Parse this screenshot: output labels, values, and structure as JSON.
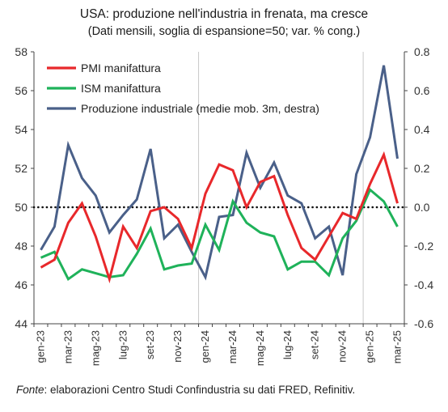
{
  "chart_data": {
    "type": "line",
    "title": "USA: produzione nell'industria in frenata, ma cresce",
    "subtitle": "(Dati mensili, soglia di espansione=50; var. % cong.)",
    "source_prefix": "Fonte",
    "source_text": ": elaborazioni Centro Studi Confindustria su dati FRED, Refinitiv.",
    "x_labels": [
      "gen-23",
      "mar-23",
      "mag-23",
      "lug-23",
      "set-23",
      "nov-23",
      "gen-24",
      "mar-24",
      "mag-24",
      "lug-24",
      "set-24",
      "nov-24",
      "gen-25",
      "mar-25"
    ],
    "months": [
      "gen-23",
      "feb-23",
      "mar-23",
      "apr-23",
      "mag-23",
      "giu-23",
      "lug-23",
      "ago-23",
      "set-23",
      "ott-23",
      "nov-23",
      "dic-23",
      "gen-24",
      "feb-24",
      "mar-24",
      "apr-24",
      "mag-24",
      "giu-24",
      "lug-24",
      "ago-24",
      "set-24",
      "ott-24",
      "nov-24",
      "dic-24",
      "gen-25",
      "feb-25",
      "mar-25"
    ],
    "y_left": {
      "min": 44,
      "max": 58,
      "ticks": [
        "44",
        "46",
        "48",
        "50",
        "52",
        "54",
        "56",
        "58"
      ]
    },
    "y_right": {
      "min": -0.6,
      "max": 0.8,
      "ticks": [
        "-0.6",
        "-0.4",
        "-0.2",
        "0.0",
        "0.2",
        "0.4",
        "0.6",
        "0.8"
      ]
    },
    "threshold": 50,
    "series": [
      {
        "name": "PMI manifattura",
        "axis": "left",
        "color": "#e8282b",
        "values": [
          46.9,
          47.3,
          49.2,
          50.2,
          48.5,
          46.3,
          49.0,
          47.9,
          49.8,
          50.0,
          49.4,
          47.9,
          50.7,
          52.2,
          51.9,
          50.0,
          51.3,
          51.6,
          49.6,
          47.9,
          47.3,
          48.5,
          49.7,
          49.4,
          51.2,
          52.7,
          50.2
        ]
      },
      {
        "name": "ISM manifattura",
        "axis": "left",
        "color": "#1fb25a",
        "values": [
          47.4,
          47.7,
          46.3,
          46.8,
          46.6,
          46.4,
          46.5,
          47.6,
          48.9,
          46.8,
          47.0,
          47.1,
          49.1,
          47.8,
          50.3,
          49.2,
          48.7,
          48.5,
          46.8,
          47.2,
          47.2,
          46.5,
          48.4,
          49.3,
          50.9,
          50.3,
          49.0
        ]
      },
      {
        "name": "Produzione industriale (medie mob. 3m, destra)",
        "axis": "right",
        "color": "#4a6089",
        "values": [
          -0.22,
          -0.1,
          0.32,
          0.15,
          0.06,
          -0.13,
          -0.04,
          0.04,
          0.3,
          -0.16,
          -0.09,
          -0.23,
          -0.36,
          -0.05,
          -0.04,
          0.28,
          0.1,
          0.23,
          0.06,
          0.02,
          -0.16,
          -0.1,
          -0.35,
          0.17,
          0.36,
          0.73,
          0.25
        ]
      }
    ],
    "grid": false,
    "legend_placement": "top-left"
  }
}
